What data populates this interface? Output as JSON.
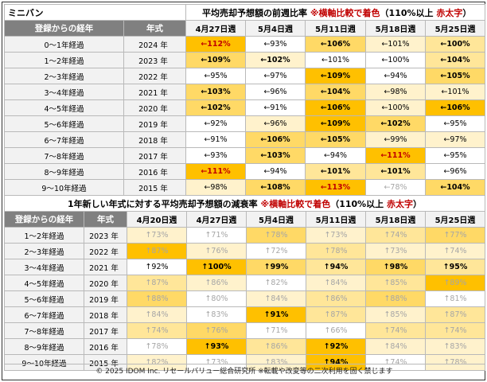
{
  "brand": "ミニバン",
  "table1": {
    "title": "平均売却予想額の前週比率",
    "note_pre": "※横軸比較で着色",
    "note_paren": "（110%以上 ",
    "note_red": "赤太字",
    "note_close": "）",
    "col_group": "登録からの経年",
    "col_year": "年式",
    "weeks": [
      "4月27日週",
      "5月4日週",
      "5月11日週",
      "5月18日週",
      "5月25日週"
    ],
    "rows": [
      {
        "label": "0～1年経過",
        "year": "2024 年",
        "cells": [
          {
            "t": "←112%",
            "c": 4,
            "red": true
          },
          {
            "t": "←93%",
            "c": 0
          },
          {
            "t": "←106%",
            "c": 3,
            "b": true
          },
          {
            "t": "←101%",
            "c": 1
          },
          {
            "t": "←100%",
            "c": 2,
            "b": true
          }
        ]
      },
      {
        "label": "1～2年経過",
        "year": "2023 年",
        "cells": [
          {
            "t": "←109%",
            "c": 3,
            "b": true
          },
          {
            "t": "←102%",
            "c": 1,
            "b": true
          },
          {
            "t": "←101%",
            "c": 0
          },
          {
            "t": "←100%",
            "c": 0
          },
          {
            "t": "←104%",
            "c": 2,
            "b": true
          }
        ]
      },
      {
        "label": "2～3年経過",
        "year": "2022 年",
        "cells": [
          {
            "t": "←95%",
            "c": 0
          },
          {
            "t": "←97%",
            "c": 0
          },
          {
            "t": "←109%",
            "c": 4,
            "b": true
          },
          {
            "t": "←94%",
            "c": 0
          },
          {
            "t": "←105%",
            "c": 3,
            "b": true
          }
        ]
      },
      {
        "label": "3～4年経過",
        "year": "2021 年",
        "cells": [
          {
            "t": "←103%",
            "c": 3,
            "b": true
          },
          {
            "t": "←96%",
            "c": 0
          },
          {
            "t": "←104%",
            "c": 3,
            "b": true
          },
          {
            "t": "←98%",
            "c": 1
          },
          {
            "t": "←101%",
            "c": 1
          }
        ]
      },
      {
        "label": "4～5年経過",
        "year": "2020 年",
        "cells": [
          {
            "t": "←102%",
            "c": 3,
            "b": true
          },
          {
            "t": "←91%",
            "c": 0
          },
          {
            "t": "←106%",
            "c": 4,
            "b": true
          },
          {
            "t": "←100%",
            "c": 1
          },
          {
            "t": "←106%",
            "c": 4,
            "b": true
          }
        ]
      },
      {
        "label": "5～6年経過",
        "year": "2019 年",
        "cells": [
          {
            "t": "←92%",
            "c": 0
          },
          {
            "t": "←96%",
            "c": 1
          },
          {
            "t": "←109%",
            "c": 4,
            "b": true
          },
          {
            "t": "←102%",
            "c": 3,
            "b": true
          },
          {
            "t": "←95%",
            "c": 0
          }
        ]
      },
      {
        "label": "6～7年経過",
        "year": "2018 年",
        "cells": [
          {
            "t": "←91%",
            "c": 0
          },
          {
            "t": "←106%",
            "c": 3,
            "b": true
          },
          {
            "t": "←105%",
            "c": 3,
            "b": true
          },
          {
            "t": "←99%",
            "c": 1
          },
          {
            "t": "←97%",
            "c": 1
          }
        ]
      },
      {
        "label": "7～8年経過",
        "year": "2017 年",
        "cells": [
          {
            "t": "←93%",
            "c": 0
          },
          {
            "t": "←103%",
            "c": 3,
            "b": true
          },
          {
            "t": "←94%",
            "c": 0
          },
          {
            "t": "←111%",
            "c": 4,
            "red": true
          },
          {
            "t": "←95%",
            "c": 0
          }
        ]
      },
      {
        "label": "8～9年経過",
        "year": "2016 年",
        "cells": [
          {
            "t": "←111%",
            "c": 4,
            "red": true
          },
          {
            "t": "←94%",
            "c": 0
          },
          {
            "t": "←101%",
            "c": 2,
            "b": true
          },
          {
            "t": "←101%",
            "c": 2,
            "b": true
          },
          {
            "t": "←96%",
            "c": 0
          }
        ]
      },
      {
        "label": "9～10年経過",
        "year": "2015 年",
        "cells": [
          {
            "t": "←98%",
            "c": 1
          },
          {
            "t": "←108%",
            "c": 3,
            "b": true
          },
          {
            "t": "←113%",
            "c": 4,
            "red": true
          },
          {
            "t": "←78%",
            "c": 0,
            "muted": true
          },
          {
            "t": "←104%",
            "c": 3,
            "b": true
          }
        ]
      }
    ]
  },
  "table2": {
    "title": "1年新しい年式に対する平均売却予想額の減衰率",
    "note_pre": "※横軸比較で着色",
    "note_paren": "（110%以上 ",
    "note_red": "赤太字",
    "note_close": "）",
    "col_group": "登録からの経年",
    "col_year": "年式",
    "weeks": [
      "4月20日週",
      "4月27日週",
      "5月4日週",
      "5月11日週",
      "5月18日週",
      "5月25日週"
    ],
    "rows": [
      {
        "label": "1～2年経過",
        "year": "2023 年",
        "cells": [
          {
            "t": "↑73%",
            "c": 1,
            "muted": true
          },
          {
            "t": "↑71%",
            "c": 0,
            "muted": true
          },
          {
            "t": "↑78%",
            "c": 3,
            "muted": true
          },
          {
            "t": "↑73%",
            "c": 1,
            "muted": true
          },
          {
            "t": "↑74%",
            "c": 2,
            "muted": true
          },
          {
            "t": "↑77%",
            "c": 3,
            "muted": true
          }
        ]
      },
      {
        "label": "2～3年経過",
        "year": "2022 年",
        "cells": [
          {
            "t": "↑87%",
            "c": 4,
            "muted": true
          },
          {
            "t": "↑76%",
            "c": 1,
            "muted": true
          },
          {
            "t": "↑72%",
            "c": 0,
            "muted": true
          },
          {
            "t": "↑78%",
            "c": 2,
            "muted": true
          },
          {
            "t": "↑73%",
            "c": 1,
            "muted": true
          },
          {
            "t": "↑74%",
            "c": 1,
            "muted": true
          }
        ]
      },
      {
        "label": "3～4年経過",
        "year": "2021 年",
        "cells": [
          {
            "t": "↑92%",
            "c": 0
          },
          {
            "t": "↑100%",
            "c": 4,
            "b": true
          },
          {
            "t": "↑99%",
            "c": 3,
            "b": true
          },
          {
            "t": "↑94%",
            "c": 2,
            "b": true
          },
          {
            "t": "↑98%",
            "c": 3,
            "b": true
          },
          {
            "t": "↑95%",
            "c": 2,
            "b": true
          }
        ]
      },
      {
        "label": "4～5年経過",
        "year": "2020 年",
        "cells": [
          {
            "t": "↑87%",
            "c": 2,
            "muted": true
          },
          {
            "t": "↑86%",
            "c": 1,
            "muted": true
          },
          {
            "t": "↑82%",
            "c": 0,
            "muted": true
          },
          {
            "t": "↑84%",
            "c": 1,
            "muted": true
          },
          {
            "t": "↑85%",
            "c": 2,
            "muted": true
          },
          {
            "t": "↑89%",
            "c": 4,
            "muted": true
          }
        ]
      },
      {
        "label": "5～6年経過",
        "year": "2019 年",
        "cells": [
          {
            "t": "↑88%",
            "c": 3,
            "muted": true
          },
          {
            "t": "↑80%",
            "c": 0,
            "muted": true
          },
          {
            "t": "↑84%",
            "c": 1,
            "muted": true
          },
          {
            "t": "↑86%",
            "c": 2,
            "muted": true
          },
          {
            "t": "↑88%",
            "c": 3,
            "muted": true
          },
          {
            "t": "↑81%",
            "c": 0,
            "muted": true
          }
        ]
      },
      {
        "label": "6～7年経過",
        "year": "2018 年",
        "cells": [
          {
            "t": "↑84%",
            "c": 1,
            "muted": true
          },
          {
            "t": "↑83%",
            "c": 0,
            "muted": true
          },
          {
            "t": "↑91%",
            "c": 4,
            "b": true
          },
          {
            "t": "↑87%",
            "c": 2,
            "muted": true
          },
          {
            "t": "↑85%",
            "c": 1,
            "muted": true
          },
          {
            "t": "↑87%",
            "c": 2,
            "muted": true
          }
        ]
      },
      {
        "label": "7～8年経過",
        "year": "2017 年",
        "cells": [
          {
            "t": "↑74%",
            "c": 2,
            "muted": true
          },
          {
            "t": "↑76%",
            "c": 3,
            "muted": true
          },
          {
            "t": "↑71%",
            "c": 0,
            "muted": true
          },
          {
            "t": "↑66%",
            "c": 0,
            "muted": true
          },
          {
            "t": "↑74%",
            "c": 2,
            "muted": true
          },
          {
            "t": "↑74%",
            "c": 2,
            "muted": true
          }
        ]
      },
      {
        "label": "8～9年経過",
        "year": "2016 年",
        "cells": [
          {
            "t": "↑78%",
            "c": 0,
            "muted": true
          },
          {
            "t": "↑93%",
            "c": 4,
            "b": true
          },
          {
            "t": "↑86%",
            "c": 2,
            "muted": true
          },
          {
            "t": "↑92%",
            "c": 4,
            "b": true
          },
          {
            "t": "↑84%",
            "c": 1,
            "muted": true
          },
          {
            "t": "↑83%",
            "c": 1,
            "muted": true
          }
        ]
      },
      {
        "label": "9～10年経過",
        "year": "2015 年",
        "cells": [
          {
            "t": "↑82%",
            "c": 1,
            "muted": true
          },
          {
            "t": "↑73%",
            "c": 0,
            "muted": true
          },
          {
            "t": "↑83%",
            "c": 1,
            "muted": true
          },
          {
            "t": "↑94%",
            "c": 4,
            "b": true
          },
          {
            "t": "↑74%",
            "c": 0,
            "muted": true
          },
          {
            "t": "↑78%",
            "c": 1,
            "muted": true
          }
        ]
      }
    ]
  },
  "footer": "© 2025 IDOM Inc. リセールバリュー総合研究所 ※転載や改変等の二次利用を固く禁じます",
  "colors": {
    "scale": [
      "#ffffff",
      "#fff2cc",
      "#ffe699",
      "#ffd966",
      "#ffc000"
    ],
    "red": "#c00000",
    "header": "#808080"
  }
}
